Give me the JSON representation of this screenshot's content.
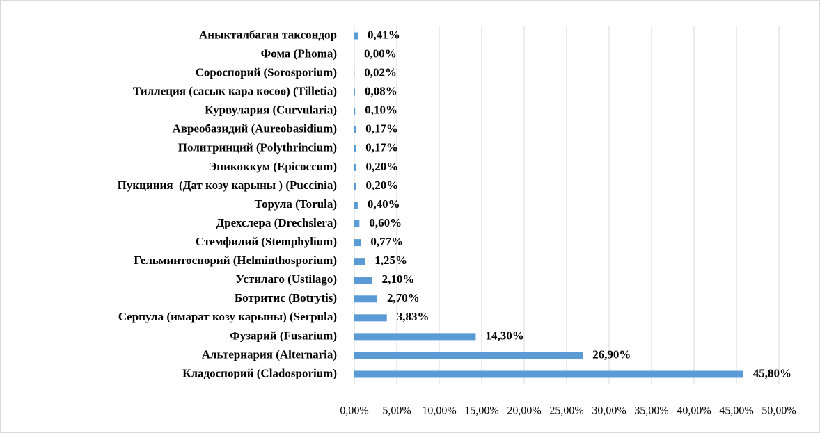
{
  "chart_data": {
    "type": "hbar",
    "categories": [
      "Аныкталбаган таксондор",
      "Фома (Phoma)",
      "Сороспорий (Sorosporium)",
      "Тиллеция (сасык кара көсөө) (Tilletia)",
      "Курвулария (Curvularia)",
      "Авреобазидий (Aureobasidium)",
      "Политринций (Polythrincium)",
      "Эпикоккум (Epicoccum)",
      "Пукциния  (Дат козу карыны ) (Puccinia)",
      "Торула (Torula)",
      "Дрехслера (Drechslera)",
      "Стемфилий (Stemphylium)",
      "Гельминтоспорий (Helminthosporium)",
      "Устилаго (Ustilago)",
      "Ботритис (Botrytis)",
      "Серпула (имарат козу карыны) (Serpula)",
      "Фузарий (Fusarium)",
      "Альтернария (Alternaria)",
      "Кладоспорий (Cladosporium)"
    ],
    "values": [
      0.41,
      0,
      0.02,
      0.08,
      0.1,
      0.17,
      0.17,
      0.2,
      0.2,
      0.4,
      0.6,
      0.77,
      1.25,
      2.1,
      2.7,
      3.83,
      14.3,
      26.9,
      45.8
    ],
    "value_labels": [
      "0,41%",
      "0,00%",
      "0,02%",
      "0,08%",
      "0,10%",
      "0,17%",
      "0,17%",
      "0,20%",
      "0,20%",
      "0,40%",
      "0,60%",
      "0,77%",
      "1,25%",
      "2,10%",
      "2,70%",
      "3,83%",
      "14,30%",
      "26,90%",
      "45,80%"
    ],
    "color": "#5b9bd5",
    "xlim": [
      0,
      50
    ],
    "xticks": [
      {
        "value": 0,
        "label": "0,00%"
      },
      {
        "value": 5,
        "label": "5,00%"
      },
      {
        "value": 10,
        "label": "10,00%"
      },
      {
        "value": 15,
        "label": "15,00%"
      },
      {
        "value": 20,
        "label": "20,00%"
      },
      {
        "value": 25,
        "label": "25,00%"
      },
      {
        "value": 30,
        "label": "30,00%"
      },
      {
        "value": 35,
        "label": "35,00%"
      },
      {
        "value": 40,
        "label": "40,00%"
      },
      {
        "value": 45,
        "label": "45,00%"
      },
      {
        "value": 50,
        "label": "50,00%"
      }
    ],
    "grid": true
  }
}
